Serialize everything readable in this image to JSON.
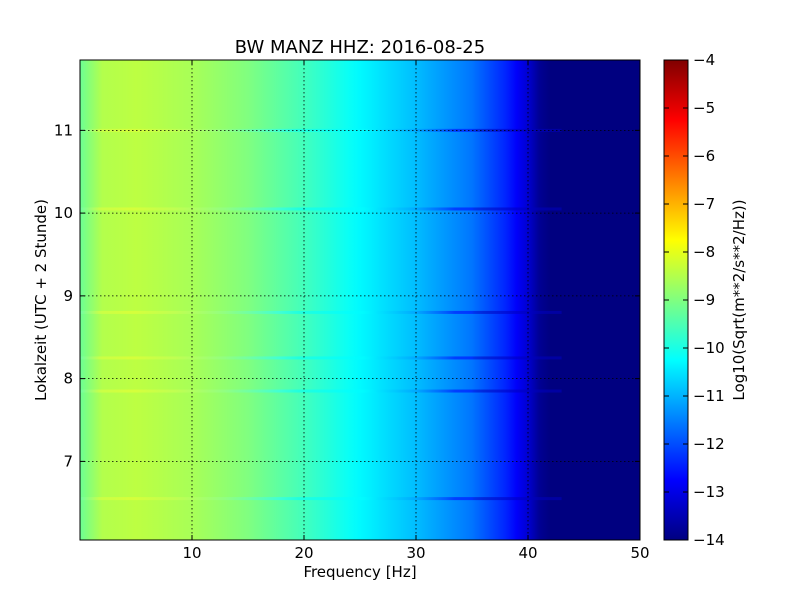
{
  "chart_data": {
    "type": "heatmap",
    "title": "BW MANZ HHZ: 2016-08-25",
    "xlabel": "Frequency [Hz]",
    "ylabel": "Lokalzeit (UTC + 2 Stunde)",
    "xlim": [
      0,
      50
    ],
    "ylim": [
      11.85,
      6.05
    ],
    "x_ticks": [
      10,
      20,
      30,
      40,
      50
    ],
    "x_tick_labels": [
      "10",
      "20",
      "30",
      "40",
      "50"
    ],
    "y_ticks": [
      7,
      8,
      9,
      10,
      11
    ],
    "y_tick_labels": [
      "7",
      "8",
      "9",
      "10",
      "11"
    ],
    "grid": true,
    "colormap": "jet",
    "colorbar": {
      "label": "Log10(Sqrt(m**2/s**2/Hz))",
      "range": [
        -14,
        -4
      ],
      "ticks": [
        -4,
        -5,
        -6,
        -7,
        -8,
        -9,
        -10,
        -11,
        -12,
        -13,
        -14
      ],
      "tick_labels": [
        "−4",
        "−5",
        "−6",
        "−7",
        "−8",
        "−9",
        "−10",
        "−11",
        "−12",
        "−13",
        "−14"
      ]
    },
    "level_profile": {
      "frequency_hz": [
        0,
        2,
        5,
        10,
        15,
        20,
        25,
        30,
        35,
        38,
        40,
        41,
        42,
        50
      ],
      "log10_amplitude": [
        -9.2,
        -8.5,
        -8.4,
        -8.6,
        -9.0,
        -9.6,
        -10.3,
        -10.9,
        -11.6,
        -12.4,
        -13.2,
        -13.8,
        -14.0,
        -14.0
      ]
    },
    "bright_bands_hours": [
      6.55,
      7.85,
      8.25,
      8.8,
      10.05,
      11.0
    ]
  }
}
